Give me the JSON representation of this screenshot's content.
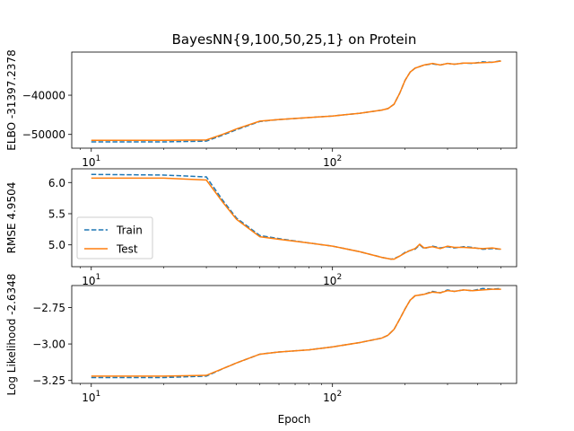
{
  "chart_data": {
    "title": "BayesNN{9,100,50,25,1} on Protein",
    "type": "line",
    "xscale": "log",
    "xlabel": "Epoch",
    "xlim": [
      8.3,
      580
    ],
    "colors": {
      "Train": "#1f77b4",
      "Test": "#ff7f0e"
    },
    "legend": {
      "location": "lower-left",
      "entries": [
        "Train",
        "Test"
      ]
    },
    "x_ticks": [
      {
        "value": 10,
        "base": "10",
        "exp": "1"
      },
      {
        "value": 100,
        "base": "10",
        "exp": "2"
      }
    ],
    "panels": [
      {
        "ylabel": "ELBO -31397.2378",
        "ylim": [
          -53500,
          -29000
        ],
        "yticks": [
          -50000,
          -40000
        ],
        "ytick_labels": [
          "−50000",
          "−40000"
        ],
        "show_legend": false,
        "series": [
          {
            "name": "Train",
            "style": "dashed",
            "x": [
              10,
              20,
              30,
              35,
              40,
              50,
              60,
              80,
              100,
              130,
              160,
              170,
              180,
              190,
              200,
              210,
              220,
              240,
              260,
              280,
              300,
              320,
              350,
              380,
              420,
              460,
              500
            ],
            "y": [
              -51900,
              -51900,
              -51700,
              -50200,
              -48800,
              -46700,
              -46200,
              -45700,
              -45300,
              -44600,
              -43800,
              -43400,
              -42300,
              -39500,
              -36200,
              -34100,
              -33100,
              -32300,
              -32000,
              -32300,
              -31900,
              -32100,
              -31800,
              -31900,
              -31500,
              -31600,
              -31200
            ]
          },
          {
            "name": "Test",
            "style": "solid",
            "x": [
              10,
              20,
              30,
              35,
              40,
              50,
              60,
              80,
              100,
              130,
              160,
              170,
              180,
              190,
              200,
              210,
              220,
              240,
              260,
              280,
              300,
              320,
              350,
              380,
              420,
              460,
              500
            ],
            "y": [
              -51500,
              -51500,
              -51400,
              -50000,
              -48600,
              -46600,
              -46200,
              -45700,
              -45300,
              -44600,
              -43800,
              -43400,
              -42300,
              -39500,
              -36200,
              -34100,
              -33100,
              -32300,
              -31900,
              -32300,
              -31900,
              -32100,
              -31800,
              -31800,
              -31700,
              -31600,
              -31300
            ]
          }
        ]
      },
      {
        "ylabel": "RMSE 4.9504",
        "ylim": [
          4.65,
          6.22
        ],
        "yticks": [
          5.0,
          5.5,
          6.0
        ],
        "ytick_labels": [
          "5.0",
          "5.5",
          "6.0"
        ],
        "show_legend": true,
        "series": [
          {
            "name": "Train",
            "style": "dashed",
            "x": [
              10,
              20,
              30,
              35,
              40,
              50,
              60,
              80,
              100,
              130,
              160,
              175,
              180,
              190,
              200,
              210,
              220,
              230,
              240,
              260,
              280,
              300,
              320,
              350,
              380,
              420,
              460,
              500
            ],
            "y": [
              6.13,
              6.12,
              6.09,
              5.72,
              5.43,
              5.15,
              5.1,
              5.03,
              4.98,
              4.89,
              4.8,
              4.77,
              4.78,
              4.82,
              4.88,
              4.91,
              4.93,
              5.0,
              4.94,
              4.98,
              4.95,
              4.97,
              4.95,
              4.97,
              4.96,
              4.93,
              4.94,
              4.93
            ]
          },
          {
            "name": "Test",
            "style": "solid",
            "x": [
              10,
              20,
              30,
              35,
              40,
              50,
              60,
              80,
              100,
              130,
              160,
              175,
              180,
              190,
              200,
              210,
              220,
              230,
              240,
              260,
              280,
              300,
              320,
              350,
              380,
              420,
              460,
              500
            ],
            "y": [
              6.07,
              6.07,
              6.04,
              5.69,
              5.41,
              5.13,
              5.09,
              5.03,
              4.98,
              4.89,
              4.8,
              4.77,
              4.77,
              4.82,
              4.87,
              4.91,
              4.94,
              5.01,
              4.95,
              4.97,
              4.94,
              4.98,
              4.96,
              4.96,
              4.95,
              4.94,
              4.95,
              4.93
            ]
          }
        ]
      },
      {
        "ylabel": "Log Likelihood -2.6348",
        "ylim": [
          -3.27,
          -2.6
        ],
        "yticks": [
          -3.25,
          -3.0,
          -2.75
        ],
        "ytick_labels": [
          "−3.25",
          "−3.00",
          "−2.75"
        ],
        "show_legend": false,
        "series": [
          {
            "name": "Train",
            "style": "dashed",
            "x": [
              10,
              20,
              30,
              35,
              40,
              50,
              60,
              80,
              100,
              130,
              160,
              170,
              180,
              190,
              200,
              210,
              220,
              240,
              260,
              280,
              300,
              320,
              350,
              380,
              420,
              460,
              500
            ],
            "y": [
              -3.23,
              -3.23,
              -3.22,
              -3.17,
              -3.13,
              -3.07,
              -3.055,
              -3.04,
              -3.02,
              -2.99,
              -2.96,
              -2.94,
              -2.9,
              -2.83,
              -2.76,
              -2.7,
              -2.67,
              -2.66,
              -2.64,
              -2.65,
              -2.63,
              -2.64,
              -2.63,
              -2.635,
              -2.62,
              -2.625,
              -2.62
            ]
          },
          {
            "name": "Test",
            "style": "solid",
            "x": [
              10,
              20,
              30,
              35,
              40,
              50,
              60,
              80,
              100,
              130,
              160,
              170,
              180,
              190,
              200,
              210,
              220,
              240,
              260,
              280,
              300,
              320,
              350,
              380,
              420,
              460,
              500
            ],
            "y": [
              -3.22,
              -3.22,
              -3.215,
              -3.17,
              -3.13,
              -3.07,
              -3.055,
              -3.04,
              -3.02,
              -2.99,
              -2.96,
              -2.94,
              -2.9,
              -2.83,
              -2.76,
              -2.7,
              -2.67,
              -2.66,
              -2.645,
              -2.65,
              -2.635,
              -2.64,
              -2.63,
              -2.635,
              -2.63,
              -2.625,
              -2.625
            ]
          }
        ]
      }
    ]
  }
}
